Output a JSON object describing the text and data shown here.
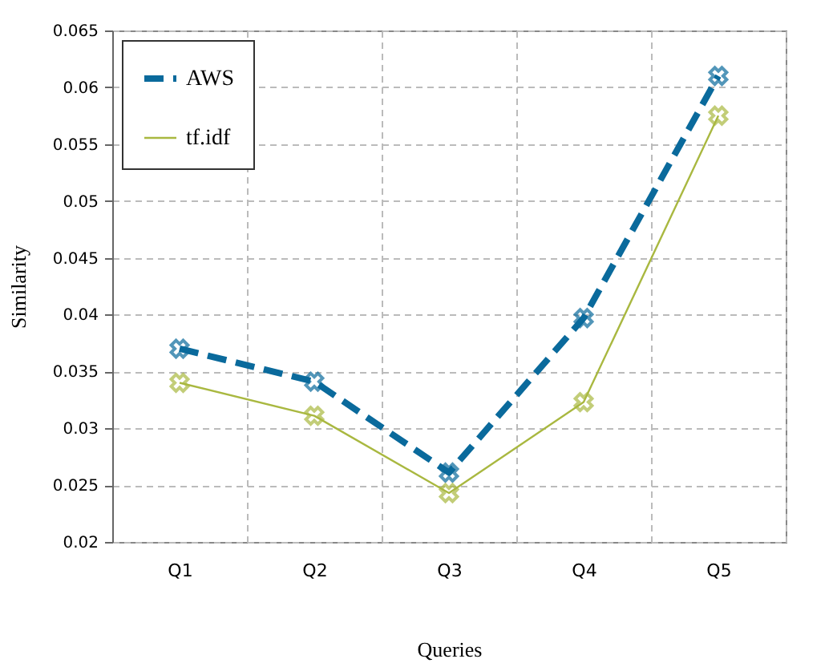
{
  "chart_data": {
    "type": "line",
    "xlabel": "Queries",
    "ylabel": "Similarity",
    "categories": [
      "Q1",
      "Q2",
      "Q3",
      "Q4",
      "Q5"
    ],
    "series": [
      {
        "name": "AWS",
        "color": "#0a6a9c",
        "line_style": "dashed",
        "values": [
          0.037,
          0.0341,
          0.0261,
          0.0397,
          0.061
        ]
      },
      {
        "name": "tf.idf",
        "color": "#a9b840",
        "line_style": "solid",
        "values": [
          0.034,
          0.0311,
          0.0243,
          0.0323,
          0.0575
        ]
      }
    ],
    "ylim": [
      0.02,
      0.065
    ],
    "yticks": [
      0.02,
      0.025,
      0.03,
      0.035,
      0.04,
      0.045,
      0.05,
      0.055,
      0.06,
      0.065
    ],
    "grid": true,
    "legend": "top left",
    "marker": "cross"
  }
}
